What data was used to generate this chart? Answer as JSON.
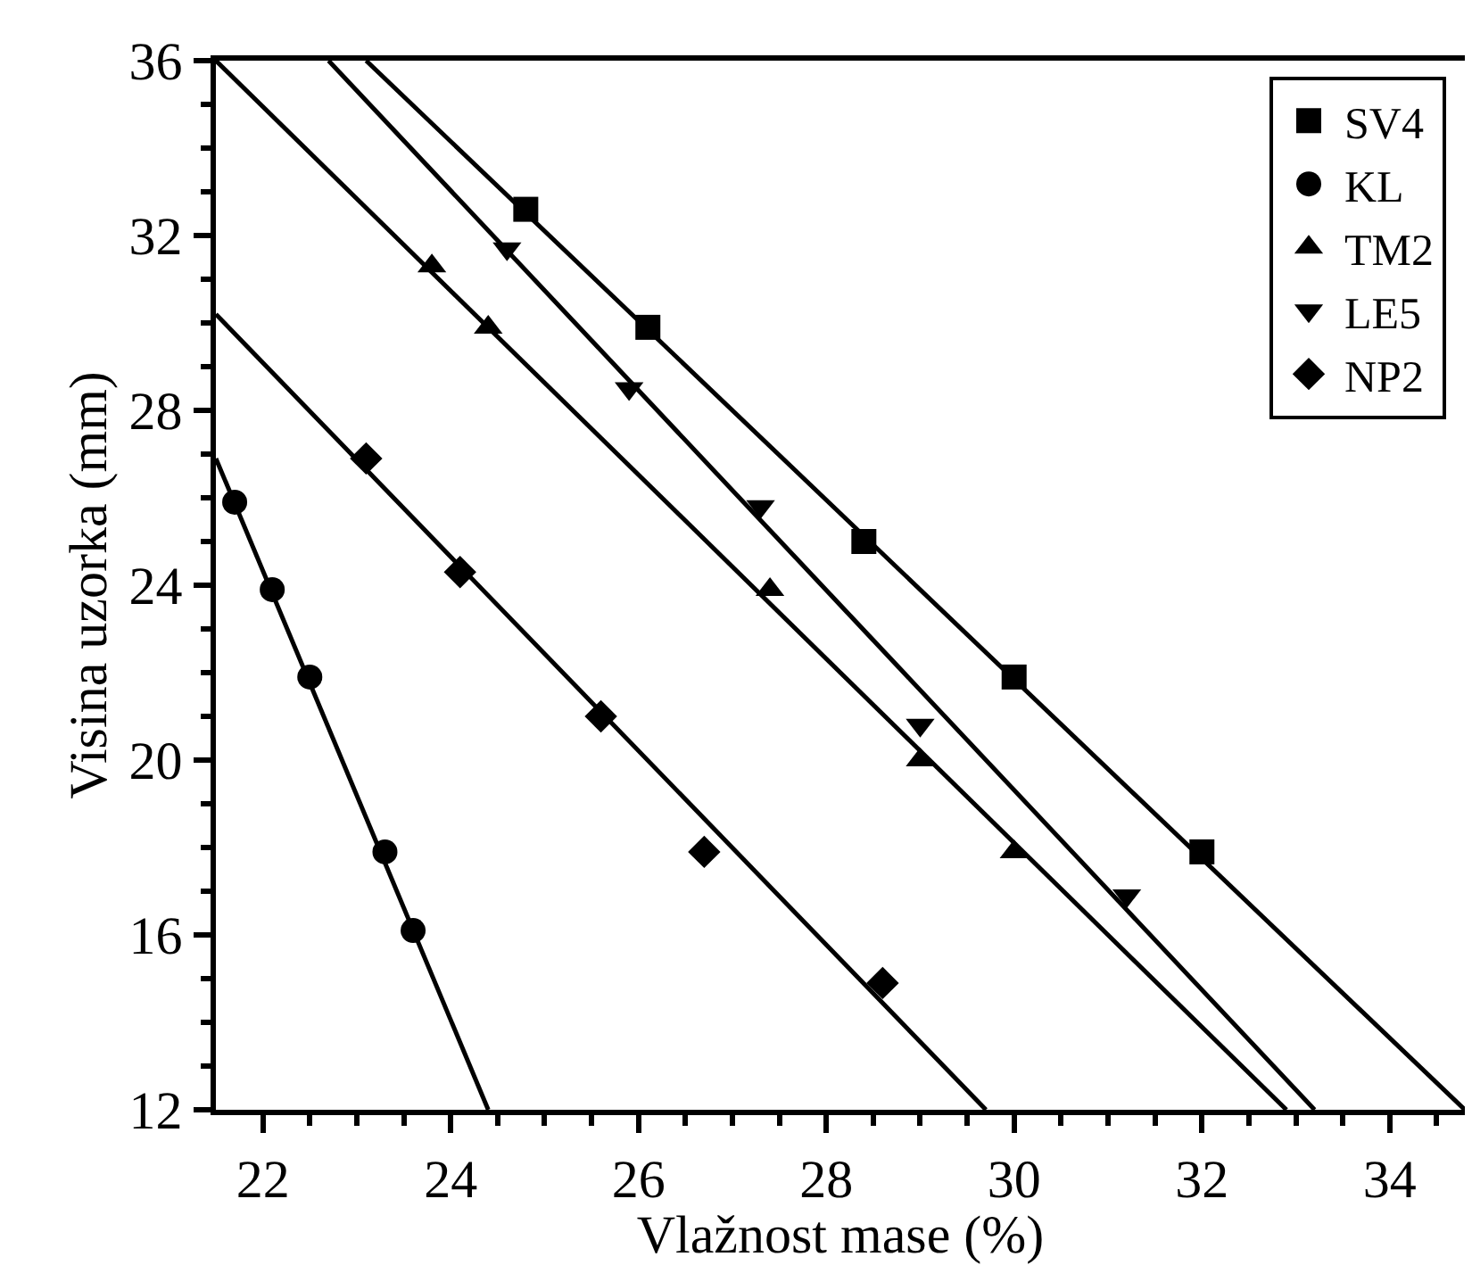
{
  "chart_data": {
    "type": "scatter",
    "xlabel": "Vlažnost mase (%)",
    "ylabel": "Visina uzorka (mm)",
    "xlim": [
      21.5,
      34.8
    ],
    "ylim": [
      12,
      36
    ],
    "xticks": [
      22,
      {
        "value": 22.5,
        "label": null
      },
      {
        "value": 23,
        "label": null
      },
      {
        "value": 23.5,
        "label": null
      },
      24,
      {
        "value": 24.5,
        "label": null
      },
      {
        "value": 25,
        "label": null
      },
      {
        "value": 25.5,
        "label": null
      },
      26,
      {
        "value": 26.5,
        "label": null
      },
      {
        "value": 27,
        "label": null
      },
      {
        "value": 27.5,
        "label": null
      },
      28,
      {
        "value": 28.5,
        "label": null
      },
      {
        "value": 29,
        "label": null
      },
      {
        "value": 29.5,
        "label": null
      },
      30,
      {
        "value": 30.5,
        "label": null
      },
      {
        "value": 31,
        "label": null
      },
      {
        "value": 31.5,
        "label": null
      },
      32,
      {
        "value": 32.5,
        "label": null
      },
      {
        "value": 33,
        "label": null
      },
      {
        "value": 33.5,
        "label": null
      },
      34,
      {
        "value": 34.5,
        "label": null
      }
    ],
    "yticks": [
      12,
      {
        "value": 13,
        "label": null
      },
      {
        "value": 14,
        "label": null
      },
      {
        "value": 15,
        "label": null
      },
      16,
      {
        "value": 17,
        "label": null
      },
      {
        "value": 18,
        "label": null
      },
      {
        "value": 19,
        "label": null
      },
      20,
      {
        "value": 21,
        "label": null
      },
      {
        "value": 22,
        "label": null
      },
      {
        "value": 23,
        "label": null
      },
      24,
      {
        "value": 25,
        "label": null
      },
      {
        "value": 26,
        "label": null
      },
      {
        "value": 27,
        "label": null
      },
      28,
      {
        "value": 29,
        "label": null
      },
      {
        "value": 30,
        "label": null
      },
      {
        "value": 31,
        "label": null
      },
      32,
      {
        "value": 33,
        "label": null
      },
      {
        "value": 34,
        "label": null
      },
      {
        "value": 35,
        "label": null
      },
      36
    ],
    "legend": "top right",
    "series": [
      {
        "name": "SV4",
        "marker": "square",
        "color": "#000000",
        "x": [
          24.8,
          26.1,
          28.4,
          30.0,
          32.0
        ],
        "values": [
          32.6,
          29.9,
          25.0,
          21.9,
          17.9
        ]
      },
      {
        "name": "KL",
        "marker": "circle",
        "color": "#000000",
        "x": [
          21.7,
          22.1,
          22.5,
          23.3,
          23.6
        ],
        "values": [
          25.9,
          23.9,
          21.9,
          17.9,
          16.1
        ]
      },
      {
        "name": "TM2",
        "marker": "triangle",
        "color": "#000000",
        "x": [
          23.8,
          24.4,
          27.4,
          29.0,
          30.0
        ],
        "values": [
          31.3,
          29.9,
          23.9,
          20.0,
          17.9
        ]
      },
      {
        "name": "LE5",
        "marker": "triangle-down",
        "color": "#000000",
        "x": [
          24.6,
          25.9,
          27.3,
          29.0,
          31.2
        ],
        "values": [
          31.7,
          28.5,
          25.8,
          20.8,
          16.9
        ]
      },
      {
        "name": "NP2",
        "marker": "diamond",
        "color": "#000000",
        "x": [
          23.1,
          24.1,
          25.6,
          26.7,
          28.6
        ],
        "values": [
          26.9,
          24.3,
          21.0,
          17.9,
          14.9
        ]
      },
      {
        "type": "line",
        "line_style": "solid",
        "color": "#000000",
        "x": [
          23.1,
          34.8
        ],
        "values": [
          36,
          12
        ]
      },
      {
        "type": "line",
        "line_style": "solid",
        "color": "#000000",
        "x": [
          21.5,
          24.4
        ],
        "values": [
          26.9,
          12
        ]
      },
      {
        "type": "line",
        "line_style": "solid",
        "color": "#000000",
        "x": [
          21.5,
          32.9
        ],
        "values": [
          36,
          12
        ]
      },
      {
        "type": "line",
        "line_style": "solid",
        "color": "#000000",
        "x": [
          22.7,
          33.2
        ],
        "values": [
          36,
          12
        ]
      },
      {
        "type": "line",
        "line_style": "solid",
        "color": "#000000",
        "x": [
          21.5,
          29.7
        ],
        "values": [
          30.2,
          12
        ]
      }
    ]
  }
}
